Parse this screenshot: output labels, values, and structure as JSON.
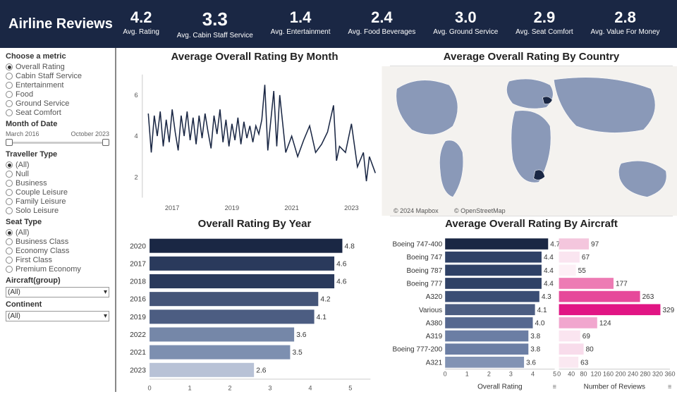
{
  "header": {
    "title": "Airline Reviews",
    "metrics": [
      {
        "value": "4.2",
        "label": "Avg. Rating"
      },
      {
        "value": "3.3",
        "label": "Avg. Cabin Staff Service",
        "highlight": true
      },
      {
        "value": "1.4",
        "label": "Avg. Entertainment"
      },
      {
        "value": "2.4",
        "label": "Avg. Food Beverages"
      },
      {
        "value": "3.0",
        "label": "Avg. Ground Service"
      },
      {
        "value": "2.9",
        "label": "Avg. Seat Comfort"
      },
      {
        "value": "2.8",
        "label": "Avg. Value For Money"
      }
    ]
  },
  "sidebar": {
    "metric_filter": {
      "title": "Choose a metric",
      "options": [
        "Overall Rating",
        "Cabin Staff Service",
        "Entertainment",
        "Food",
        "Ground Service",
        "Seat Comfort"
      ],
      "selected": "Overall Rating"
    },
    "date_filter": {
      "title": "Month of Date",
      "min": "March 2016",
      "max": "October 2023"
    },
    "traveller_filter": {
      "title": "Traveller Type",
      "options": [
        "(All)",
        "Null",
        "Business",
        "Couple Leisure",
        "Family Leisure",
        "Solo Leisure"
      ],
      "selected": "(All)"
    },
    "seat_filter": {
      "title": "Seat Type",
      "options": [
        "(All)",
        "Business Class",
        "Economy Class",
        "First Class",
        "Premium Economy"
      ],
      "selected": "(All)"
    },
    "aircraft_filter": {
      "title": "Aircraft(group)",
      "value": "(All)"
    },
    "continent_filter": {
      "title": "Continent",
      "value": "(All)"
    }
  },
  "line_chart": {
    "title": "Average Overall Rating By Month",
    "ylim": [
      1,
      7
    ],
    "yticks": [
      2,
      4,
      6
    ],
    "xlim": [
      2016,
      2024
    ],
    "xticks": [
      2017,
      2019,
      2021,
      2023
    ],
    "color": "#1a2744",
    "points": [
      [
        2016.2,
        5.1
      ],
      [
        2016.3,
        3.2
      ],
      [
        2016.4,
        5.0
      ],
      [
        2016.5,
        4.0
      ],
      [
        2016.6,
        5.2
      ],
      [
        2016.7,
        3.5
      ],
      [
        2016.8,
        4.8
      ],
      [
        2016.9,
        3.7
      ],
      [
        2017.0,
        5.3
      ],
      [
        2017.1,
        4.2
      ],
      [
        2017.2,
        3.3
      ],
      [
        2017.3,
        5.0
      ],
      [
        2017.4,
        4.0
      ],
      [
        2017.5,
        5.2
      ],
      [
        2017.6,
        3.8
      ],
      [
        2017.7,
        4.9
      ],
      [
        2017.8,
        3.6
      ],
      [
        2017.9,
        5.0
      ],
      [
        2018.0,
        3.9
      ],
      [
        2018.1,
        5.1
      ],
      [
        2018.2,
        4.2
      ],
      [
        2018.3,
        3.4
      ],
      [
        2018.4,
        5.0
      ],
      [
        2018.5,
        4.1
      ],
      [
        2018.6,
        5.3
      ],
      [
        2018.7,
        3.7
      ],
      [
        2018.8,
        4.8
      ],
      [
        2018.9,
        3.5
      ],
      [
        2019.0,
        4.6
      ],
      [
        2019.1,
        3.8
      ],
      [
        2019.2,
        4.9
      ],
      [
        2019.3,
        3.6
      ],
      [
        2019.4,
        4.7
      ],
      [
        2019.5,
        3.9
      ],
      [
        2019.6,
        4.5
      ],
      [
        2019.7,
        3.7
      ],
      [
        2019.8,
        4.5
      ],
      [
        2019.9,
        4.1
      ],
      [
        2020.0,
        4.8
      ],
      [
        2020.1,
        6.5
      ],
      [
        2020.2,
        3.3
      ],
      [
        2020.4,
        6.2
      ],
      [
        2020.5,
        3.5
      ],
      [
        2020.6,
        6.0
      ],
      [
        2020.8,
        3.2
      ],
      [
        2021.0,
        4.0
      ],
      [
        2021.2,
        3.0
      ],
      [
        2021.4,
        3.8
      ],
      [
        2021.6,
        4.5
      ],
      [
        2021.8,
        3.2
      ],
      [
        2022.0,
        3.6
      ],
      [
        2022.2,
        4.2
      ],
      [
        2022.4,
        5.5
      ],
      [
        2022.5,
        2.8
      ],
      [
        2022.6,
        3.5
      ],
      [
        2022.8,
        3.2
      ],
      [
        2023.0,
        4.6
      ],
      [
        2023.2,
        2.5
      ],
      [
        2023.4,
        3.2
      ],
      [
        2023.5,
        1.8
      ],
      [
        2023.6,
        3.0
      ],
      [
        2023.8,
        2.2
      ]
    ]
  },
  "map_chart": {
    "title": "Average Overall Rating By Country",
    "attribution_left": "© 2024 Mapbox",
    "attribution_right": "© OpenStreetMap",
    "land_color": "#8a99b8",
    "ocean_color": "#f4f2ef",
    "dark_color": "#1a2744"
  },
  "year_chart": {
    "title": "Overall Rating By Year",
    "xlim": [
      0,
      5.5
    ],
    "xticks": [
      0,
      1,
      2,
      3,
      4,
      5
    ],
    "bars": [
      {
        "cat": "2020",
        "val": 4.8,
        "color": "#1a2744"
      },
      {
        "cat": "2017",
        "val": 4.6,
        "color": "#2a3a5c"
      },
      {
        "cat": "2018",
        "val": 4.6,
        "color": "#2a3a5c"
      },
      {
        "cat": "2016",
        "val": 4.2,
        "color": "#455578"
      },
      {
        "cat": "2019",
        "val": 4.1,
        "color": "#4c5d82"
      },
      {
        "cat": "2022",
        "val": 3.6,
        "color": "#7587a8"
      },
      {
        "cat": "2021",
        "val": 3.5,
        "color": "#7d8fb0"
      },
      {
        "cat": "2023",
        "val": 2.6,
        "color": "#b8c2d6"
      }
    ]
  },
  "aircraft_chart": {
    "title": "Average Overall Rating By Aircraft",
    "rating_xlim": [
      0,
      5
    ],
    "rating_xticks": [
      0,
      1,
      2,
      3,
      4,
      5
    ],
    "reviews_xlim": [
      0,
      360
    ],
    "reviews_xticks": [
      0,
      40,
      80,
      120,
      160,
      200,
      240,
      280,
      320,
      360
    ],
    "rating_axis_title": "Overall Rating",
    "reviews_axis_title": "Number of Reviews",
    "rows": [
      {
        "cat": "Boeing 747-400",
        "rating": 4.7,
        "reviews": 97,
        "rcolor": "#1a2744",
        "ncolor": "#f4c6dd"
      },
      {
        "cat": "Boeing 747",
        "rating": 4.4,
        "reviews": 67,
        "rcolor": "#2f4166",
        "ncolor": "#fae5f0"
      },
      {
        "cat": "Boeing 787",
        "rating": 4.4,
        "reviews": 55,
        "rcolor": "#2f4166",
        "ncolor": "#fdf0f6"
      },
      {
        "cat": "Boeing 777",
        "rating": 4.4,
        "reviews": 177,
        "rcolor": "#2f4166",
        "ncolor": "#ed7bb4"
      },
      {
        "cat": "A320",
        "rating": 4.3,
        "reviews": 263,
        "rcolor": "#3a4d74",
        "ncolor": "#e6499a"
      },
      {
        "cat": "Various",
        "rating": 4.1,
        "reviews": 329,
        "rcolor": "#4c5d82",
        "ncolor": "#e11584"
      },
      {
        "cat": "A380",
        "rating": 4.0,
        "reviews": 124,
        "rcolor": "#566890",
        "ncolor": "#f1a6ce"
      },
      {
        "cat": "A319",
        "rating": 3.8,
        "reviews": 69,
        "rcolor": "#6b7ea4",
        "ncolor": "#fae5f0"
      },
      {
        "cat": "Boeing 777-200",
        "rating": 3.8,
        "reviews": 80,
        "rcolor": "#6b7ea4",
        "ncolor": "#f8dceb"
      },
      {
        "cat": "A321",
        "rating": 3.6,
        "reviews": 63,
        "rcolor": "#8293b4",
        "ncolor": "#fae8f1"
      }
    ]
  }
}
